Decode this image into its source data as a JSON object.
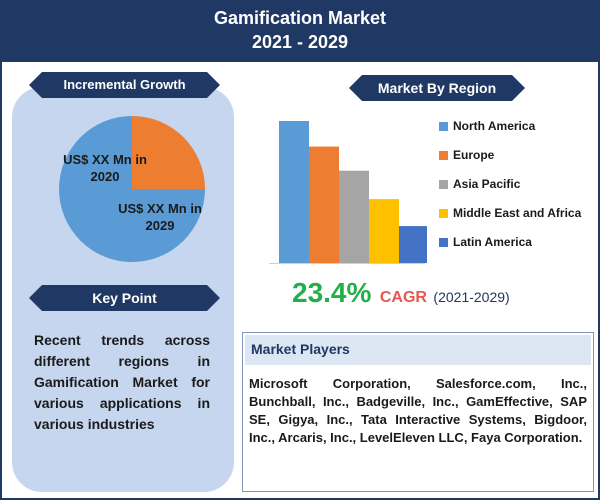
{
  "header": {
    "title_line1": "Gamification Market",
    "title_line2": "2021 - 2029"
  },
  "incremental_growth": {
    "heading": "Incremental Growth",
    "label_2020": "US$ XX Mn in 2020",
    "label_2029": "US$ XX Mn in 2029"
  },
  "key_point": {
    "heading": "Key Point",
    "text": "Recent trends across different regions in Gamification Market for various applications in various industries"
  },
  "region": {
    "heading": "Market By Region"
  },
  "cagr": {
    "value": "23.4%",
    "label": "CAGR",
    "period": "(2021-2029)"
  },
  "market_players": {
    "heading": "Market Players",
    "text": "Microsoft Corporation, Salesforce.com, Inc., Bunchball, Inc., Badgeville, Inc., GamEffective, SAP SE, Gigya, Inc., Tata Interactive Systems, Bigdoor, Inc., Arcaris, Inc., LevelEleven LLC, Faya Corporation."
  },
  "chart_data": [
    {
      "type": "pie",
      "title": "",
      "slices": [
        {
          "label": "US$ XX Mn in 2020",
          "value": 25,
          "color": "#ed7d31"
        },
        {
          "label": "US$ XX Mn in 2029",
          "value": 75,
          "color": "#5b9bd5"
        }
      ]
    },
    {
      "type": "bar",
      "title": "",
      "categories": [
        "North America",
        "Europe",
        "Asia Pacific",
        "Middle East and Africa",
        "Latin America"
      ],
      "values": [
        100,
        82,
        65,
        45,
        26
      ],
      "colors": [
        "#5b9bd5",
        "#ed7d31",
        "#a5a5a5",
        "#ffc000",
        "#4472c4"
      ],
      "ylim": [
        0,
        100
      ],
      "grid": false,
      "legend_placement": "right",
      "xlabel": "",
      "ylabel": ""
    }
  ]
}
